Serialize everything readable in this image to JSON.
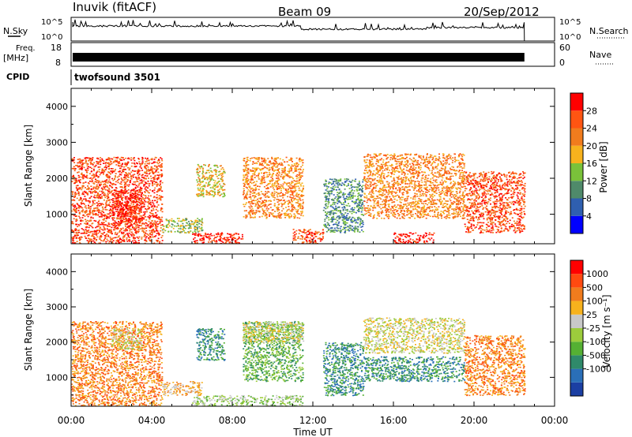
{
  "header": {
    "station": "Inuvik (fitACF)",
    "beam": "Beam 09",
    "date": "20/Sep/2012"
  },
  "top_panels": {
    "nsky": {
      "label": "N.Sky",
      "ticks_left": [
        "10^5",
        "10^0"
      ],
      "ticks_right": [
        "10^5",
        "10^0"
      ],
      "right_label": "N.Search"
    },
    "freq": {
      "label_line1": "Freq.",
      "label_line2": "[MHz]",
      "ticks_left": [
        "18",
        "8"
      ],
      "ticks_right": [
        "60",
        "0"
      ],
      "right_label": "Nave"
    },
    "cpid": {
      "label": "CPID",
      "value": "twofsound 3501"
    }
  },
  "chart_data": [
    {
      "type": "heatmap",
      "panel": "power",
      "ylabel": "Slant Range [km]",
      "xlabel": "Time UT",
      "x_range_hours": [
        0,
        24
      ],
      "ylim_km": [
        180,
        4500
      ],
      "x_tick_labels": [
        "00:00",
        "04:00",
        "08:00",
        "12:00",
        "16:00",
        "20:00",
        "00:00"
      ],
      "y_tick_labels": [
        "1000",
        "2000",
        "3000",
        "4000"
      ],
      "data_end_hour": 22.5,
      "colorbar": {
        "label": "Power [dB]",
        "ticks": [
          "4",
          "8",
          "12",
          "16",
          "20",
          "24",
          "28"
        ],
        "colors": [
          "#0000ff",
          "#2f5fb0",
          "#4f8a6a",
          "#7ac23a",
          "#f7b21d",
          "#f17c1d",
          "#ff5512",
          "#ff0000"
        ]
      },
      "echo_regions": [
        {
          "t": [
            0.0,
            4.5
          ],
          "r": [
            180,
            2600
          ],
          "level": 6
        },
        {
          "t": [
            2.0,
            3.5
          ],
          "r": [
            700,
            1700
          ],
          "level": 7
        },
        {
          "t": [
            4.5,
            6.5
          ],
          "r": [
            500,
            900
          ],
          "level": 3
        },
        {
          "t": [
            6.0,
            8.5
          ],
          "r": [
            180,
            500
          ],
          "level": 7
        },
        {
          "t": [
            6.2,
            7.6
          ],
          "r": [
            1500,
            2400
          ],
          "level": 4
        },
        {
          "t": [
            8.5,
            11.5
          ],
          "r": [
            900,
            2600
          ],
          "level": 5
        },
        {
          "t": [
            11.0,
            12.5
          ],
          "r": [
            180,
            600
          ],
          "level": 6
        },
        {
          "t": [
            12.5,
            14.5
          ],
          "r": [
            500,
            2000
          ],
          "level": 2
        },
        {
          "t": [
            14.5,
            19.5
          ],
          "r": [
            900,
            2700
          ],
          "level": 5
        },
        {
          "t": [
            16.0,
            18.0
          ],
          "r": [
            180,
            500
          ],
          "level": 7
        },
        {
          "t": [
            19.5,
            22.5
          ],
          "r": [
            500,
            2200
          ],
          "level": 6
        }
      ]
    },
    {
      "type": "heatmap",
      "panel": "velocity",
      "ylabel": "Slant Range [km]",
      "xlabel": "Time UT",
      "x_range_hours": [
        0,
        24
      ],
      "ylim_km": [
        180,
        4500
      ],
      "x_tick_labels": [
        "00:00",
        "04:00",
        "08:00",
        "12:00",
        "16:00",
        "20:00",
        "00:00"
      ],
      "y_tick_labels": [
        "1000",
        "2000",
        "3000",
        "4000"
      ],
      "data_end_hour": 22.5,
      "colorbar": {
        "label": "Velocity [m s⁻¹]",
        "ticks": [
          "1000",
          "500",
          "100",
          "25",
          "-25",
          "-100",
          "-500",
          "-1000"
        ],
        "colors": [
          "#1b3fa3",
          "#2a6fb8",
          "#2f8a6a",
          "#55b033",
          "#9ccc3c",
          "#c8c8c8",
          "#f7b21d",
          "#f17c1d",
          "#ff4a10",
          "#ff0000"
        ]
      },
      "echo_regions": [
        {
          "t": [
            0.0,
            4.5
          ],
          "r": [
            180,
            2600
          ],
          "level": 7
        },
        {
          "t": [
            2.0,
            3.5
          ],
          "r": [
            1800,
            2400
          ],
          "level": 5
        },
        {
          "t": [
            4.5,
            6.5
          ],
          "r": [
            500,
            900
          ],
          "level": 6
        },
        {
          "t": [
            6.0,
            11.5
          ],
          "r": [
            180,
            500
          ],
          "level": 4
        },
        {
          "t": [
            6.2,
            7.6
          ],
          "r": [
            1500,
            2400
          ],
          "level": 2
        },
        {
          "t": [
            8.5,
            11.5
          ],
          "r": [
            900,
            2600
          ],
          "level": 3
        },
        {
          "t": [
            8.5,
            11.5
          ],
          "r": [
            2000,
            2600
          ],
          "level": 5
        },
        {
          "t": [
            12.5,
            14.5
          ],
          "r": [
            500,
            2000
          ],
          "level": 2
        },
        {
          "t": [
            14.5,
            19.5
          ],
          "r": [
            1700,
            2700
          ],
          "level": 5
        },
        {
          "t": [
            14.5,
            19.5
          ],
          "r": [
            900,
            1600
          ],
          "level": 2
        },
        {
          "t": [
            19.5,
            22.5
          ],
          "r": [
            500,
            2200
          ],
          "level": 7
        }
      ]
    }
  ]
}
